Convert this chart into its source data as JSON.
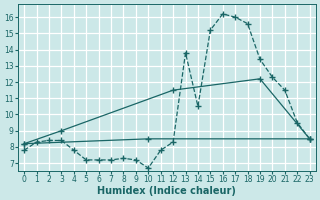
{
  "xlabel": "Humidex (Indice chaleur)",
  "background_color": "#cce8e8",
  "grid_color": "#ffffff",
  "line_color": "#1a6666",
  "xlim": [
    -0.5,
    23.5
  ],
  "ylim": [
    6.5,
    16.8
  ],
  "xticks": [
    0,
    1,
    2,
    3,
    4,
    5,
    6,
    7,
    8,
    9,
    10,
    11,
    12,
    13,
    14,
    15,
    16,
    17,
    18,
    19,
    20,
    21,
    22,
    23
  ],
  "yticks": [
    7,
    8,
    9,
    10,
    11,
    12,
    13,
    14,
    15,
    16
  ],
  "line1_x": [
    0,
    1,
    2,
    3,
    4,
    5,
    6,
    7,
    8,
    9,
    10,
    11,
    12,
    13,
    14,
    15,
    16,
    17,
    18,
    19,
    20,
    21,
    22,
    23
  ],
  "line1_y": [
    7.8,
    8.3,
    8.4,
    8.4,
    7.8,
    7.2,
    7.2,
    7.2,
    7.3,
    7.2,
    6.7,
    7.8,
    8.3,
    13.8,
    10.5,
    15.2,
    16.2,
    16.0,
    15.6,
    13.4,
    12.3,
    11.5,
    9.5,
    8.5
  ],
  "line2_x": [
    0,
    10,
    23
  ],
  "line2_y": [
    8.2,
    8.5,
    8.5
  ],
  "line3_x": [
    0,
    3,
    12,
    19,
    23
  ],
  "line3_y": [
    8.2,
    9.0,
    11.5,
    12.2,
    8.5
  ]
}
